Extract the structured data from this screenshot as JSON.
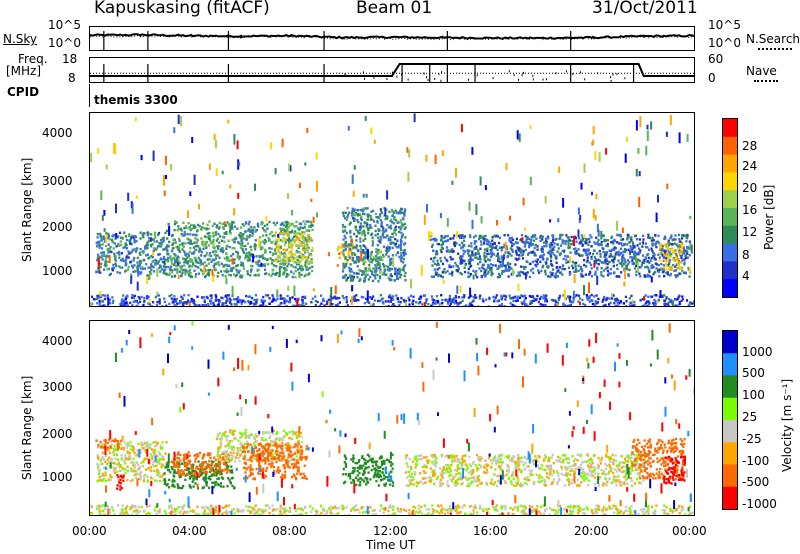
{
  "header": {
    "station": "Kapuskasing (fitACF)",
    "beam": "Beam 01",
    "date": "31/Oct/2011"
  },
  "noise_panel": {
    "left_label": "N.Sky",
    "right_label": "N.Search",
    "left_ticks": [
      "10^5",
      "10^0"
    ],
    "right_ticks": [
      "10^5",
      "10^0"
    ]
  },
  "freq_panel": {
    "left_label_1": "Freq.",
    "left_label_2": "[MHz]",
    "right_label": "Nave",
    "left_ticks": [
      "18",
      "8"
    ],
    "right_ticks": [
      "60",
      "0"
    ]
  },
  "cpid": {
    "label": "CPID",
    "value": "themis 3300"
  },
  "power_panel": {
    "ylabel": "Slant Range [km]",
    "yticks": [
      "4000",
      "3000",
      "2000",
      "1000"
    ],
    "colorbar_label": "Power [dB]",
    "colorbar_ticks": [
      "28",
      "24",
      "20",
      "16",
      "12",
      "8",
      "4"
    ],
    "colors": [
      "#0000ff",
      "#2030c8",
      "#3a6ee6",
      "#2e8b57",
      "#5ab45a",
      "#9bd24a",
      "#ffd700",
      "#ffa500",
      "#ff6000",
      "#ff0000"
    ]
  },
  "velocity_panel": {
    "ylabel": "Slant Range [km]",
    "yticks": [
      "4000",
      "3000",
      "2000",
      "1000"
    ],
    "colorbar_label": "Velocity [m s⁻¹]",
    "colorbar_ticks": [
      "1000",
      "500",
      "100",
      "25",
      "-25",
      "-100",
      "-500",
      "-1000"
    ],
    "colors": [
      "#0000cc",
      "#1e90ff",
      "#228b22",
      "#7cfc00",
      "#c8c8c0",
      "#ffa500",
      "#ff6a00",
      "#ff0000"
    ]
  },
  "x_axis": {
    "label": "Time UT",
    "ticks": [
      "00:00",
      "04:00",
      "08:00",
      "12:00",
      "16:00",
      "20:00",
      "00:00"
    ]
  },
  "chart_data": [
    {
      "type": "line",
      "title": "Kapuskasing (fitACF) Beam 01 31/Oct/2011",
      "series": [
        {
          "name": "N.Sky",
          "x": [
            0,
            2,
            4,
            6,
            8,
            10,
            12,
            14,
            16,
            18,
            20,
            22,
            24
          ],
          "y": [
            3.2,
            3.3,
            3.1,
            3.0,
            3.1,
            2.7,
            2.8,
            2.7,
            2.6,
            2.6,
            2.7,
            3.0,
            3.1
          ]
        },
        {
          "name": "N.Search",
          "x": [
            0,
            2,
            4,
            6,
            8,
            10,
            12,
            14,
            16,
            18,
            20,
            22,
            24
          ],
          "y": [
            2.9,
            3.0,
            2.9,
            2.8,
            2.9,
            2.5,
            2.5,
            2.4,
            2.4,
            2.4,
            2.5,
            2.8,
            2.9
          ]
        }
      ],
      "ylim": [
        "10^0",
        "10^5"
      ],
      "xlabel": "Time UT"
    },
    {
      "type": "line",
      "series": [
        {
          "name": "Freq.",
          "x": [
            0,
            12,
            12.3,
            21.8,
            22,
            24
          ],
          "y": [
            10.5,
            10.5,
            15.5,
            15.5,
            10.5,
            10.5
          ]
        },
        {
          "name": "Nave",
          "x": [
            0,
            24
          ],
          "y": [
            22,
            22
          ]
        }
      ],
      "ylim": [
        8,
        18
      ],
      "y2lim": [
        0,
        60
      ]
    },
    {
      "type": "heatmap",
      "title": "Power [dB]",
      "ylabel": "Slant Range [km]",
      "xlabel": "Time UT",
      "xlim": [
        0,
        24
      ],
      "ylim": [
        180,
        4500
      ],
      "clim": [
        0,
        32
      ],
      "regions": [
        {
          "t0": 0.2,
          "t1": 3.0,
          "r0": 900,
          "r1": 1850,
          "level": 10
        },
        {
          "t0": 3.0,
          "t1": 8.8,
          "r0": 850,
          "r1": 2100,
          "level": 12
        },
        {
          "t0": 7.3,
          "t1": 8.8,
          "r0": 1150,
          "r1": 1850,
          "level": 20
        },
        {
          "t0": 9.8,
          "t1": 10.4,
          "r0": 1100,
          "r1": 1600,
          "level": 22
        },
        {
          "t0": 10.0,
          "t1": 12.5,
          "r0": 750,
          "r1": 2400,
          "level": 10
        },
        {
          "t0": 10.8,
          "t1": 11.6,
          "r0": 900,
          "r1": 1450,
          "level": 14
        },
        {
          "t0": 13.5,
          "t1": 23.8,
          "r0": 850,
          "r1": 1800,
          "level": 8
        },
        {
          "t0": 22.6,
          "t1": 23.5,
          "r0": 1000,
          "r1": 1600,
          "level": 22
        },
        {
          "t0": 0.0,
          "t1": 24.0,
          "r0": 180,
          "r1": 450,
          "level": 6
        }
      ]
    },
    {
      "type": "heatmap",
      "title": "Velocity [m s⁻¹]",
      "ylabel": "Slant Range [km]",
      "xlabel": "Time UT",
      "xlim": [
        0,
        24
      ],
      "ylim": [
        180,
        4500
      ],
      "clim": [
        -1000,
        1000
      ],
      "regions": [
        {
          "t0": 0.2,
          "t1": 3.0,
          "r0": 950,
          "r1": 1850,
          "value": 0
        },
        {
          "t0": 0.2,
          "t1": 1.2,
          "r0": 1700,
          "r1": 1900,
          "value": -300
        },
        {
          "t0": 1.0,
          "t1": 1.3,
          "r0": 700,
          "r1": 1100,
          "value": -700
        },
        {
          "t0": 2.9,
          "t1": 5.7,
          "r0": 800,
          "r1": 1400,
          "value": 150
        },
        {
          "t0": 3.2,
          "t1": 5.5,
          "r0": 1100,
          "r1": 1600,
          "value": -250
        },
        {
          "t0": 5.0,
          "t1": 8.4,
          "r0": 1400,
          "r1": 2100,
          "value": 0
        },
        {
          "t0": 6.0,
          "t1": 8.6,
          "r0": 1000,
          "r1": 1800,
          "value": -350
        },
        {
          "t0": 10.0,
          "t1": 12.0,
          "r0": 850,
          "r1": 1550,
          "value": 150
        },
        {
          "t0": 12.5,
          "t1": 22.0,
          "r0": 850,
          "r1": 1550,
          "value": 0
        },
        {
          "t0": 21.5,
          "t1": 23.6,
          "r0": 1000,
          "r1": 1900,
          "value": -400
        },
        {
          "t0": 22.8,
          "t1": 23.6,
          "r0": 900,
          "r1": 1500,
          "value": -900
        },
        {
          "t0": 0.0,
          "t1": 24.0,
          "r0": 180,
          "r1": 420,
          "value": 0
        }
      ]
    }
  ]
}
